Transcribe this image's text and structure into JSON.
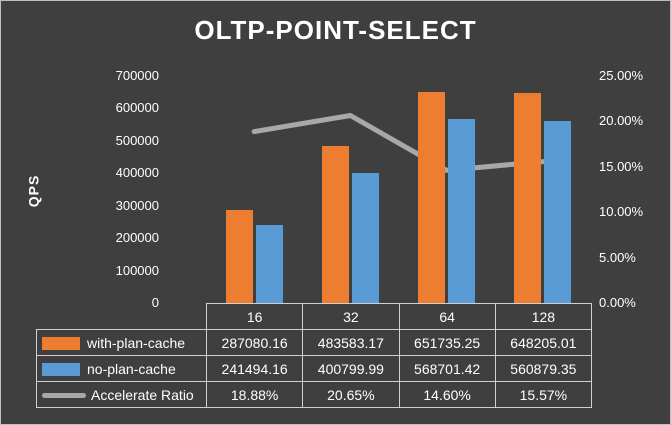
{
  "chart_data": {
    "type": "bar",
    "title": "OLTP-POINT-SELECT",
    "ylabel": "QPS",
    "categories": [
      "16",
      "32",
      "64",
      "128"
    ],
    "series": [
      {
        "name": "with-plan-cache",
        "type": "bar",
        "color": "#ED7D31",
        "axis": "left",
        "values": [
          287080.16,
          483583.17,
          651735.25,
          648205.01
        ]
      },
      {
        "name": "no-plan-cache",
        "type": "bar",
        "color": "#5B9BD5",
        "axis": "left",
        "values": [
          241494.16,
          400799.99,
          568701.42,
          560879.35
        ]
      },
      {
        "name": "Accelerate Ratio",
        "type": "line",
        "color": "#A8A8A8",
        "axis": "right",
        "values": [
          18.88,
          20.65,
          14.6,
          15.57
        ]
      }
    ],
    "left_axis": {
      "min": 0,
      "max": 700000,
      "step": 100000,
      "ticks": [
        "0",
        "100000",
        "200000",
        "300000",
        "400000",
        "500000",
        "600000",
        "700000"
      ]
    },
    "right_axis": {
      "min": 0,
      "max": 25,
      "step": 5,
      "ticks": [
        "0.00%",
        "5.00%",
        "10.00%",
        "15.00%",
        "20.00%",
        "25.00%"
      ]
    },
    "grid": false,
    "legend_position": "table"
  },
  "table": {
    "column_headers": [
      "16",
      "32",
      "64",
      "128"
    ],
    "rows": [
      {
        "label": "with-plan-cache",
        "swatch": "bar-orange",
        "cells": [
          "287080.16",
          "483583.17",
          "651735.25",
          "648205.01"
        ]
      },
      {
        "label": "no-plan-cache",
        "swatch": "bar-blue",
        "cells": [
          "241494.16",
          "400799.99",
          "568701.42",
          "560879.35"
        ]
      },
      {
        "label": "Accelerate Ratio",
        "swatch": "line-gray",
        "cells": [
          "18.88%",
          "20.65%",
          "14.60%",
          "15.57%"
        ]
      }
    ]
  },
  "colors": {
    "background": "#3F3F3F",
    "text": "#FFFFFF",
    "orange": "#ED7D31",
    "blue": "#5B9BD5",
    "gray_line": "#A8A8A8",
    "table_border": "#D0D0D0"
  }
}
